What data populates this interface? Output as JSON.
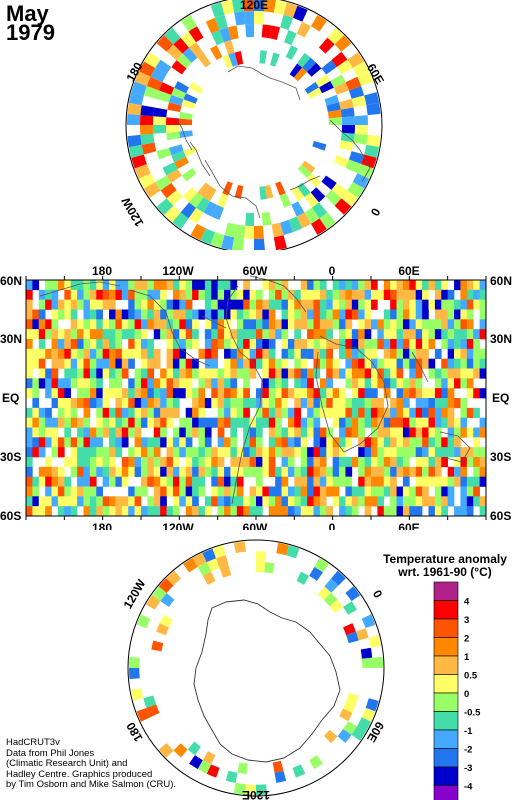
{
  "title": {
    "month": "May",
    "year": "1979"
  },
  "credits": "HadCRUT3v\nData from Phil Jones\n(Climatic Research Unit) and\nHadley Centre.  Graphics produced\nby Tim Osborn and Mike Salmon (CRU).",
  "north_polar_map": {
    "lon_labels": [
      "120E",
      "60E",
      "0",
      "120W",
      "180"
    ]
  },
  "world_map": {
    "lon_labels": [
      "180",
      "120W",
      "60W",
      "0",
      "60E"
    ],
    "lat_labels": [
      "60N",
      "30N",
      "EQ",
      "30S",
      "60S"
    ]
  },
  "south_polar_map": {
    "lon_labels": [
      "120W",
      "0",
      "60E",
      "180",
      "120E"
    ]
  },
  "legend": {
    "title_line1": "Temperature anomaly",
    "title_line2": "wrt. 1961-90  (°C)",
    "ticks": [
      "4",
      "3",
      "2",
      "1",
      "0.5",
      "0",
      "-0.5",
      "-1",
      "-2",
      "-3",
      "-4"
    ],
    "colors": [
      "#b0228a",
      "#ff0000",
      "#ff5500",
      "#ff8800",
      "#ffb844",
      "#ffff66",
      "#99ff66",
      "#44ddaa",
      "#44aaff",
      "#2277ee",
      "#0000cc",
      "#8800cc"
    ]
  }
}
